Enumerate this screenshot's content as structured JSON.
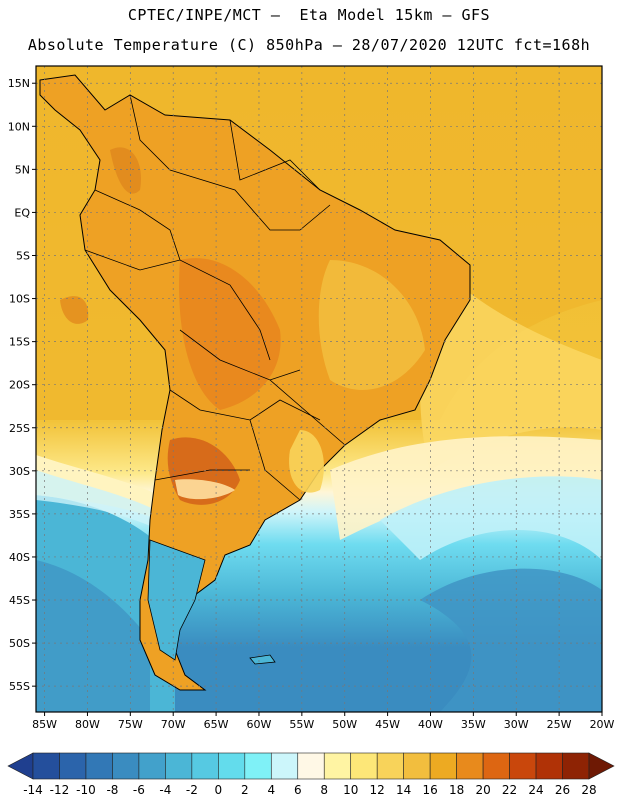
{
  "title_line1": "CPTEC/INPE/MCT –  Eta Model 15km – GFS",
  "title_line2": "Absolute Temperature (C) 850hPa – 28/07/2020 12UTC fct=168h",
  "map": {
    "lon_range": [
      -86,
      -20
    ],
    "lat_range": [
      -58,
      17
    ],
    "lat_ticks": [
      "15N",
      "10N",
      "5N",
      "EQ",
      "5S",
      "10S",
      "15S",
      "20S",
      "25S",
      "30S",
      "35S",
      "40S",
      "45S",
      "50S",
      "55S"
    ],
    "lat_values": [
      15,
      10,
      5,
      0,
      -5,
      -10,
      -15,
      -20,
      -25,
      -30,
      -35,
      -40,
      -45,
      -50,
      -55
    ],
    "lon_ticks": [
      "85W",
      "80W",
      "75W",
      "70W",
      "65W",
      "60W",
      "55W",
      "50W",
      "45W",
      "40W",
      "35W",
      "30W",
      "25W",
      "20W"
    ],
    "lon_values": [
      -85,
      -80,
      -75,
      -70,
      -65,
      -60,
      -55,
      -50,
      -45,
      -40,
      -35,
      -30,
      -25,
      -20
    ],
    "grid": "dotted"
  },
  "colorbar": {
    "labels": [
      "-14",
      "-12",
      "-10",
      "-8",
      "-6",
      "-4",
      "-2",
      "0",
      "2",
      "4",
      "6",
      "8",
      "10",
      "12",
      "14",
      "16",
      "18",
      "20",
      "22",
      "24",
      "26",
      "28"
    ],
    "colors": [
      "#1f3f8f",
      "#244f9c",
      "#2b64ab",
      "#3278b6",
      "#3a8cc0",
      "#42a1cb",
      "#4bb6d6",
      "#56c9e2",
      "#63dcec",
      "#7ff1f7",
      "#ccf6fb",
      "#fff8e6",
      "#fff4a3",
      "#fde778",
      "#f8d35a",
      "#f2be3e",
      "#edaa22",
      "#e88a1c",
      "#dd6612",
      "#c9470c",
      "#b03206",
      "#8e2304",
      "#6e1904"
    ]
  }
}
